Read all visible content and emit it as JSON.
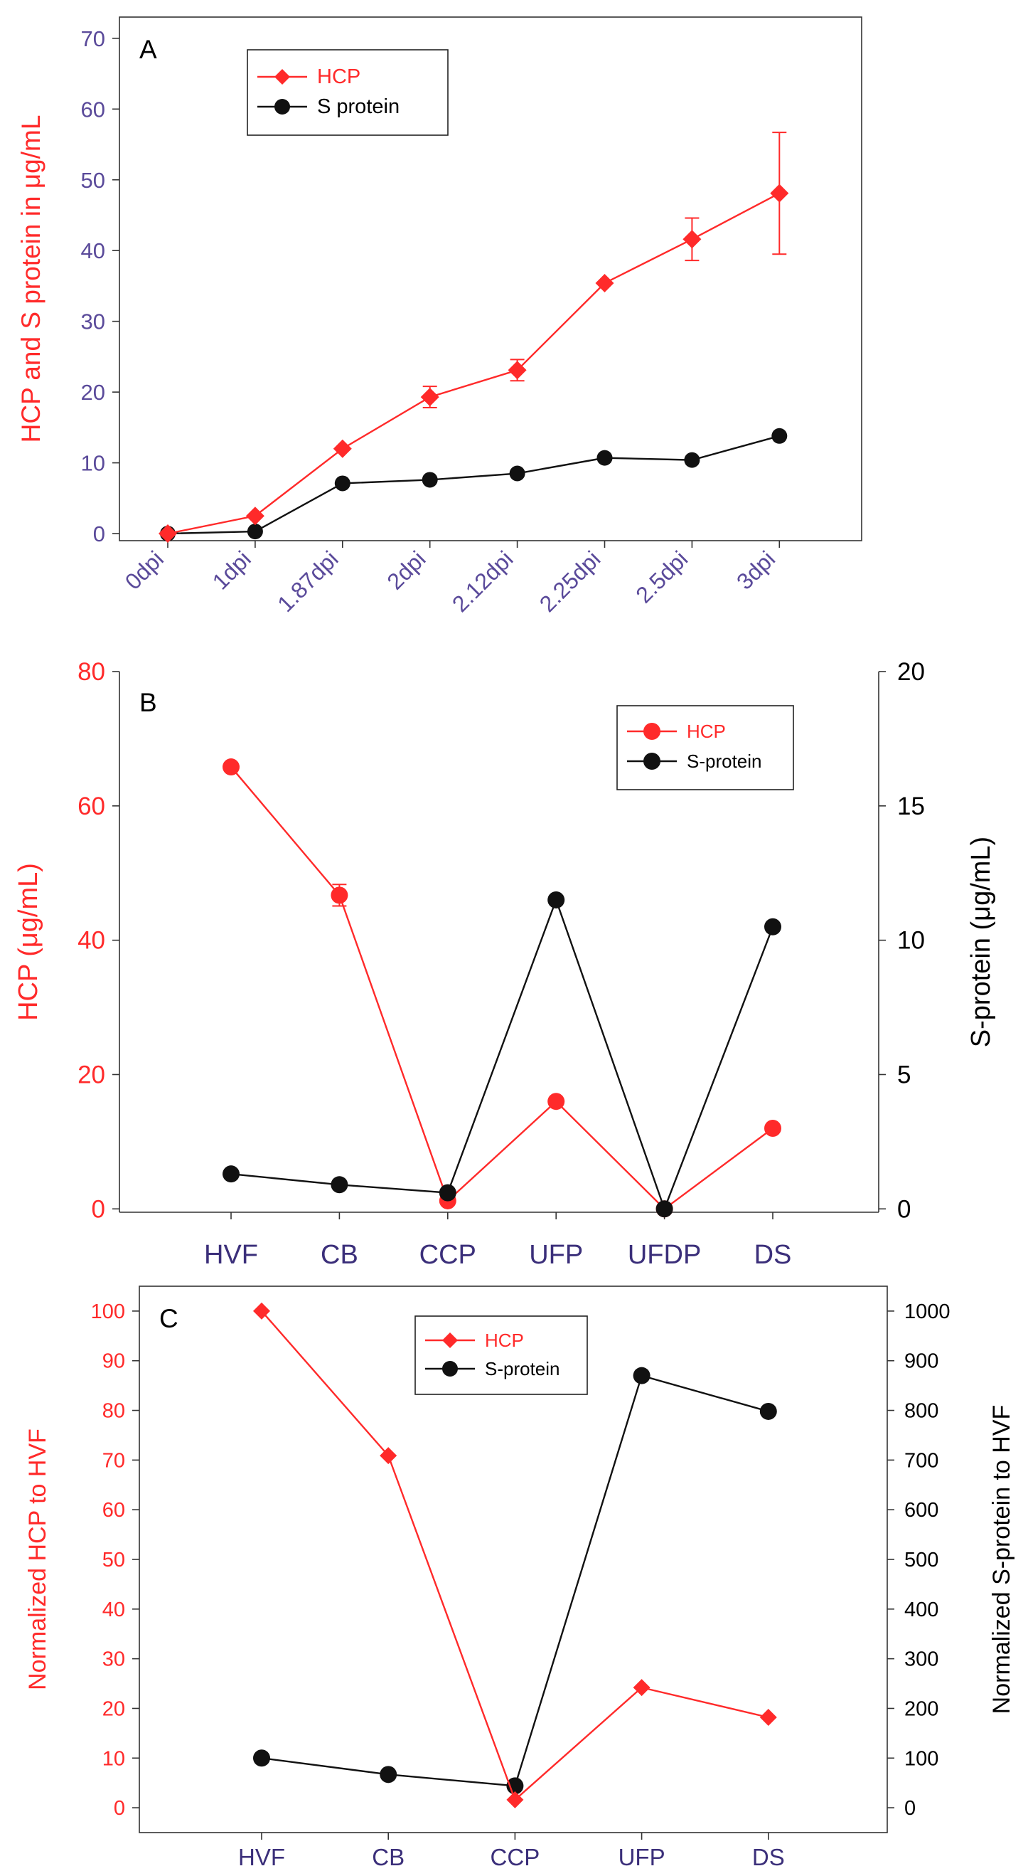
{
  "colors": {
    "hcp": "#ff2a2a",
    "sprotein": "#111111",
    "tick_purple": "#5a4a9a",
    "tick_navy": "#3b2f7a",
    "axis": "#333333"
  },
  "chart_data": [
    {
      "panel_label": "A",
      "type": "line",
      "categories": [
        "0dpi",
        "1dpi",
        "1.87dpi",
        "2dpi",
        "2.12dpi",
        "2.25dpi",
        "2.5dpi",
        "3dpi"
      ],
      "ylabel": "HCP and S protein in μg/mL",
      "xlabel": "",
      "ylim": [
        -1,
        73
      ],
      "yticks": [
        0,
        10,
        20,
        30,
        40,
        50,
        60,
        70
      ],
      "legend_position": "top-left",
      "series": [
        {
          "name": "HCP",
          "marker": "diamond",
          "values": [
            0,
            2.5,
            12,
            19.3,
            23.1,
            35.4,
            41.6,
            48.1
          ],
          "errors": [
            0,
            0,
            0,
            1.5,
            1.5,
            0,
            3,
            8.6
          ]
        },
        {
          "name": "S protein",
          "marker": "circle",
          "values": [
            0,
            0.3,
            7.1,
            7.6,
            8.5,
            10.7,
            10.4,
            13.8
          ],
          "errors": [
            0,
            0,
            0,
            0,
            0,
            0,
            0,
            0
          ]
        }
      ]
    },
    {
      "panel_label": "B",
      "type": "line",
      "categories": [
        "HVF",
        "CB",
        "CCP",
        "UFP",
        "UFDP",
        "DS"
      ],
      "ylabel_left": "HCP (μg/mL)",
      "ylabel_right": "S-protein (μg/mL)",
      "ylim_left": [
        -0.5,
        80
      ],
      "yticks_left": [
        0,
        20,
        40,
        60,
        80
      ],
      "ylim_right": [
        -0.125,
        20
      ],
      "yticks_right": [
        0,
        5,
        10,
        15,
        20
      ],
      "legend_position": "top-right",
      "series": [
        {
          "name": "HCP",
          "marker": "circle",
          "axis": "left",
          "values": [
            65.8,
            46.7,
            1.2,
            16,
            0,
            12
          ],
          "errors": [
            0,
            1.6,
            0,
            0,
            0,
            0
          ]
        },
        {
          "name": "S-protein",
          "marker": "circle",
          "axis": "right",
          "values": [
            1.3,
            0.9,
            0.6,
            11.5,
            0,
            10.5
          ],
          "errors": [
            0,
            0,
            0,
            0,
            0,
            0
          ]
        }
      ]
    },
    {
      "panel_label": "C",
      "type": "line",
      "categories": [
        "HVF",
        "CB",
        "CCP",
        "UFP",
        "DS"
      ],
      "ylabel_left": "Normalized HCP to HVF",
      "ylabel_right": "Normalized S-protein to HVF",
      "ylim_left": [
        -5,
        105
      ],
      "yticks_left": [
        0,
        10,
        20,
        30,
        40,
        50,
        60,
        70,
        80,
        90,
        100
      ],
      "ylim_right": [
        -50,
        1050
      ],
      "yticks_right": [
        0,
        100,
        200,
        300,
        400,
        500,
        600,
        700,
        800,
        900,
        1000
      ],
      "legend_position": "top-center",
      "series": [
        {
          "name": "HCP",
          "marker": "diamond",
          "axis": "left",
          "values": [
            100,
            70.9,
            1.6,
            24.2,
            18.2
          ]
        },
        {
          "name": "S-protein",
          "marker": "circle",
          "axis": "right",
          "values": [
            100,
            67,
            44,
            870,
            798
          ]
        }
      ]
    }
  ]
}
